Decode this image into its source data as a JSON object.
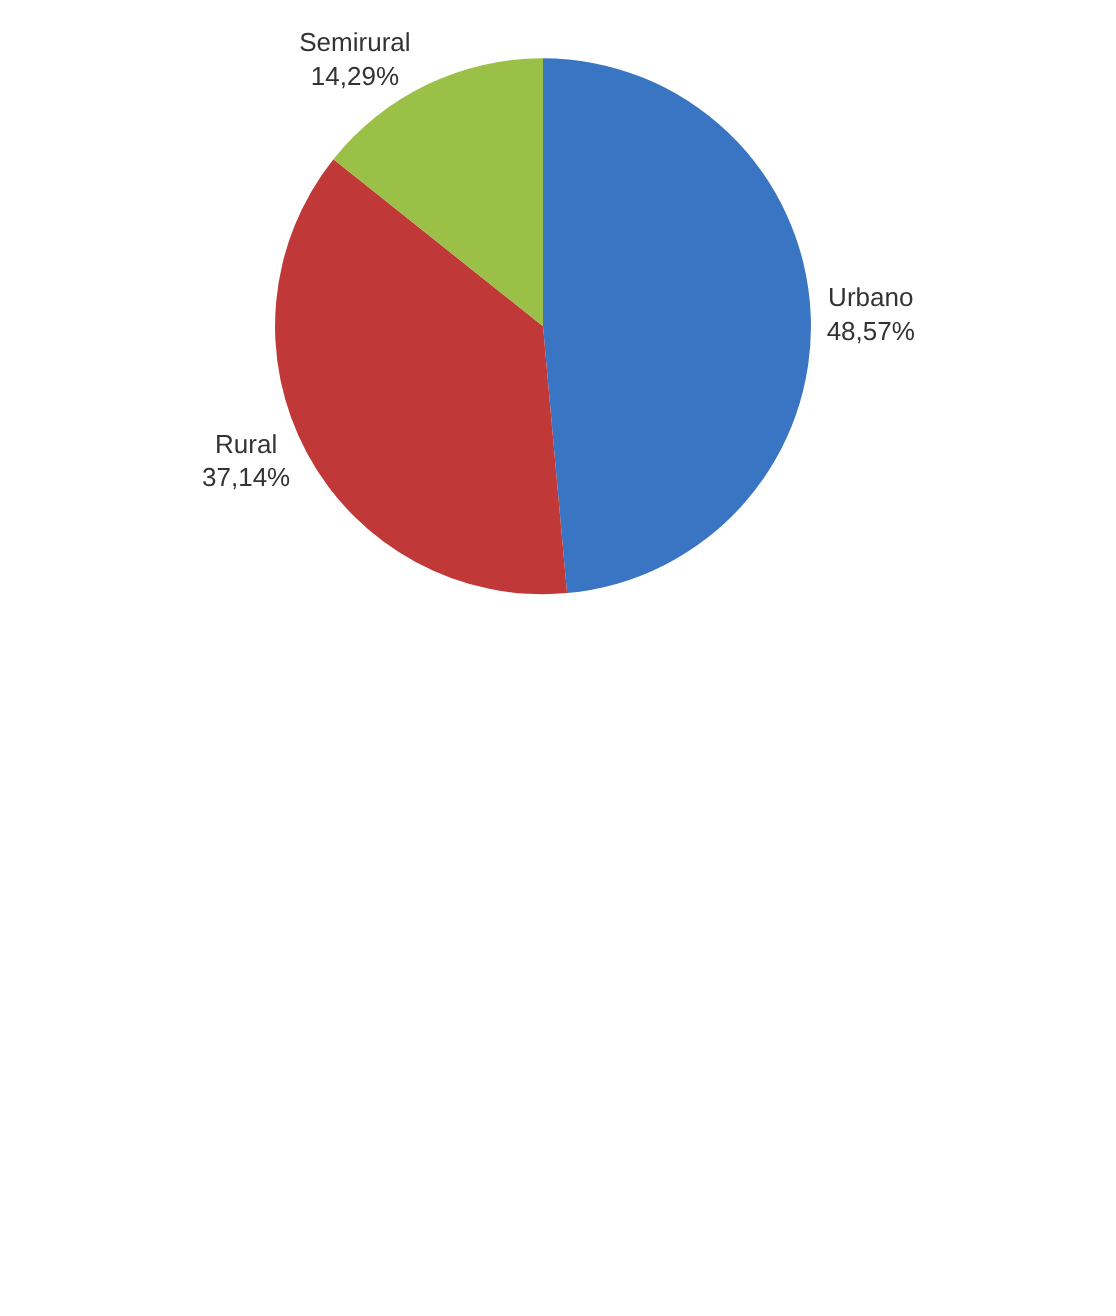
{
  "chart_data": {
    "type": "pie",
    "categories": [
      "Urbano",
      "Rural",
      "Semirural"
    ],
    "values": [
      48.57,
      37.14,
      14.29
    ],
    "value_labels": [
      "48,57%",
      "37,14%",
      "14,29%"
    ],
    "colors": [
      "#3a75c4",
      "#c03838",
      "#9bc048"
    ]
  }
}
